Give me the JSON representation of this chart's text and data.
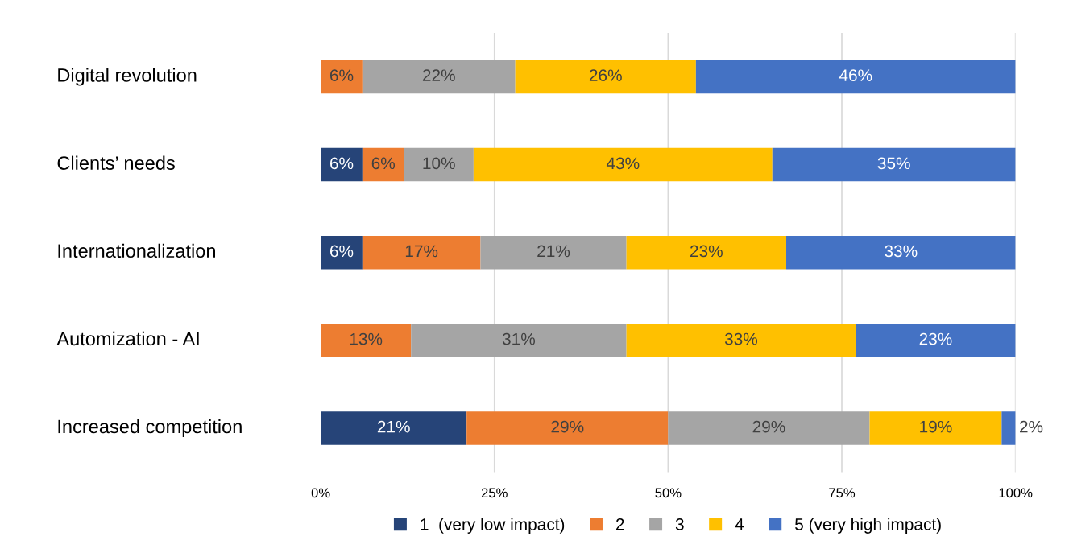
{
  "chart_data": {
    "type": "bar",
    "orientation": "horizontal",
    "stacked": true,
    "categories": [
      "Digital revolution",
      "Clients’ needs",
      "Internationalization",
      "Automization - AI",
      "Increased competition"
    ],
    "series": [
      {
        "name": "1  (very low impact)",
        "color": "#264478",
        "values": [
          null,
          6,
          6,
          null,
          21
        ],
        "value_labels": [
          null,
          "6%",
          "6%",
          null,
          "21%"
        ]
      },
      {
        "name": "2",
        "color": "#ed7d31",
        "values": [
          6,
          6,
          17,
          13,
          29
        ],
        "value_labels": [
          "6%",
          "6%",
          "17%",
          "13%",
          "29%"
        ]
      },
      {
        "name": "3",
        "color": "#a5a5a5",
        "values": [
          22,
          10,
          21,
          31,
          29
        ],
        "value_labels": [
          "22%",
          "10%",
          "21%",
          "31%",
          "29%"
        ]
      },
      {
        "name": "4",
        "color": "#ffc000",
        "values": [
          26,
          43,
          23,
          33,
          19
        ],
        "value_labels": [
          "26%",
          "43%",
          "23%",
          "33%",
          "19%"
        ]
      },
      {
        "name": "5 (very high impact)",
        "color": "#4472c4",
        "values": [
          46,
          35,
          33,
          23,
          2
        ],
        "value_labels": [
          "46%",
          "35%",
          "33%",
          "23%",
          "2%"
        ]
      }
    ],
    "xlim": [
      0,
      100
    ],
    "xticks": [
      {
        "value": 0,
        "label": "0%"
      },
      {
        "value": 25,
        "label": "25%"
      },
      {
        "value": 50,
        "label": "50%"
      },
      {
        "value": 75,
        "label": "75%"
      },
      {
        "value": 100,
        "label": "100%"
      }
    ],
    "grid": "x",
    "legend": "bottom"
  }
}
